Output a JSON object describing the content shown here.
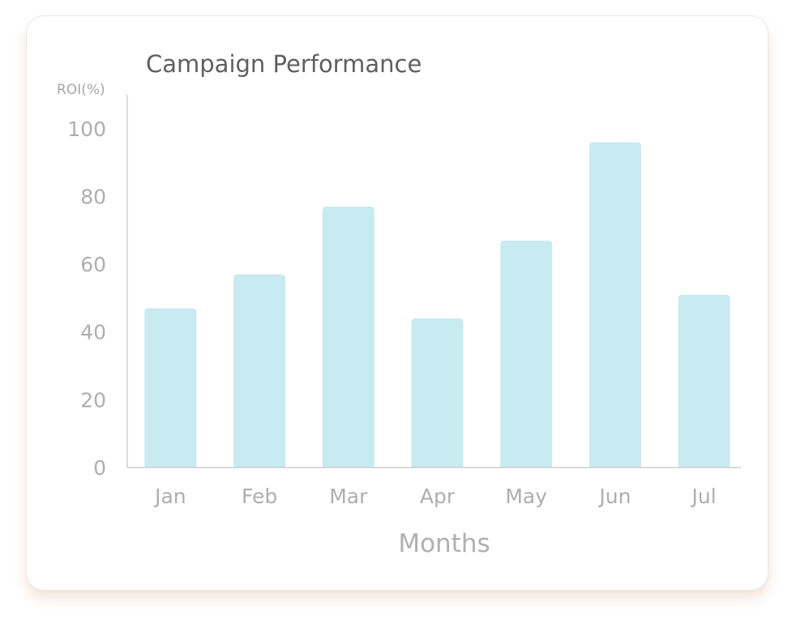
{
  "colors": {
    "bar": "#c8eaf1",
    "axis": "#cfcfcf",
    "text": "#aeaeae",
    "title": "#5f5f5f"
  },
  "chart_data": {
    "type": "bar",
    "title": "Campaign Performance",
    "ylabel": "ROI(%)",
    "xlabel": "Months",
    "categories": [
      "Jan",
      "Feb",
      "Mar",
      "Apr",
      "May",
      "Jun",
      "Jul"
    ],
    "values": [
      47,
      57,
      77,
      44,
      67,
      96,
      51
    ],
    "ylim": [
      0,
      110
    ],
    "yticks": [
      0,
      20,
      40,
      60,
      80,
      100
    ],
    "grid": false,
    "legend": "none"
  }
}
